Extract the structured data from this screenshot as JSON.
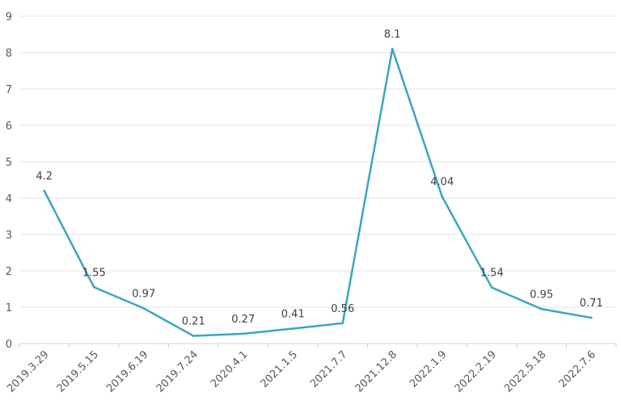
{
  "chart_data": {
    "type": "line",
    "title": "",
    "xlabel": "",
    "ylabel": "",
    "categories": [
      "2019.3.29",
      "2019.5.15",
      "2019.6.19",
      "2019.7.24",
      "2020.4.1",
      "2021.1.5",
      "2021.7.7",
      "2021.12.8",
      "2022.1.9",
      "2022.2.19",
      "2022.5.18",
      "2022.7.6"
    ],
    "series": [
      {
        "values": [
          4.2,
          1.55,
          0.97,
          0.21,
          0.27,
          0.41,
          0.56,
          8.1,
          4.04,
          1.54,
          0.95,
          0.71
        ],
        "labels": [
          "4.2",
          "1.55",
          "0.97",
          "0.21",
          "0.27",
          "0.41",
          "0.56",
          "8.1",
          "4.04",
          "1.54",
          "0.95",
          "0.71"
        ],
        "color": "#3aa6c0"
      }
    ],
    "ylim": [
      0,
      9
    ],
    "yticks": [
      "0",
      "1",
      "2",
      "3",
      "4",
      "5",
      "6",
      "7",
      "8",
      "9"
    ],
    "grid": true,
    "legend": "none"
  }
}
